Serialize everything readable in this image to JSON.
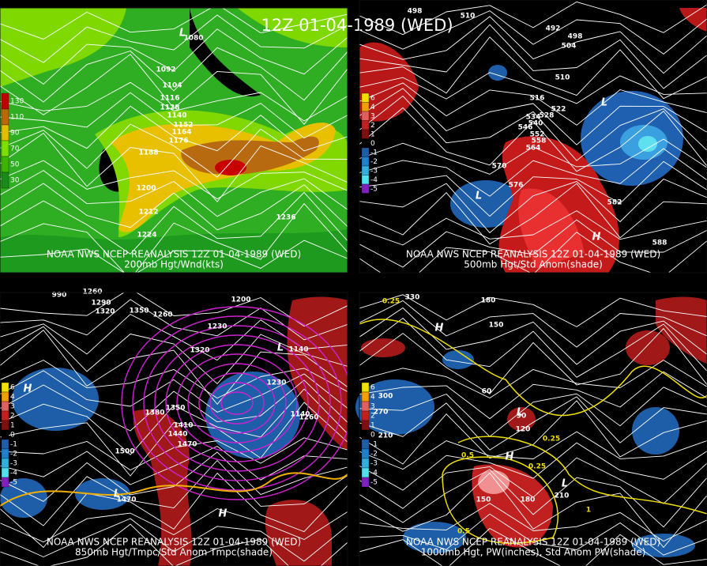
{
  "title": "12Z 01-04-1989 (WED)",
  "panels": [
    {
      "source": "NOAA NWS NCEP REANALYSIS 12Z 01-04-1989 (WED)",
      "caption": "200mb Hgt/Wnd(kts)",
      "legend": [
        "130",
        "110",
        "90",
        "70",
        "50",
        "30"
      ],
      "labels": [
        "L",
        "1080",
        "1092",
        "1104",
        "1116",
        "1128",
        "1140",
        "1152",
        "1164",
        "1176",
        "1188",
        "1200",
        "1212",
        "1224",
        "1236"
      ]
    },
    {
      "source": "NOAA NWS NCEP REANALYSIS 12Z 01-04-1989 (WED)",
      "caption": "500mb Hgt/Std Anom(shade)",
      "legend": [
        "6",
        "4",
        "3",
        "2",
        "1",
        "0",
        "-1",
        "-2",
        "-3",
        "-4",
        "-5"
      ],
      "labels": [
        "498",
        "510",
        "492",
        "498",
        "504",
        "510",
        "516",
        "522",
        "528",
        "534",
        "540",
        "546",
        "552",
        "558",
        "564",
        "570",
        "576",
        "582",
        "588",
        "L",
        "L",
        "H"
      ]
    },
    {
      "source": "NOAA NWS NCEP REANALYSIS 12Z 01-04-1989 (WED)",
      "caption": "850mb Hgt/Tmpc/Std Anom Tmpc(shade)",
      "legend": [
        "6",
        "4",
        "3",
        "2",
        "1",
        "0",
        "-1",
        "-2",
        "-3",
        "-4",
        "-5"
      ],
      "labels": [
        "990",
        "1260",
        "1290",
        "1320",
        "1350",
        "1260",
        "1230",
        "1200",
        "1320",
        "1140",
        "1230",
        "1380",
        "1350",
        "1410",
        "1440",
        "1470",
        "1500",
        "1470",
        "1140",
        "1260",
        "H",
        "L",
        "L",
        "H"
      ]
    },
    {
      "source": "NOAA NWS NCEP REANALYSIS 12Z 01-04-1989 (WED)",
      "caption": "1000mb Hgt, PW(inches), Std Anom PW(shade)",
      "legend": [
        "6",
        "4",
        "3",
        "2",
        "1",
        "0",
        "-1",
        "-2",
        "-3",
        "-4",
        "-5"
      ],
      "labels": [
        "330",
        "180",
        "150",
        "60",
        "90",
        "120",
        "210",
        "300",
        "270",
        "210",
        "180",
        "150",
        "0.25",
        "0.25",
        "0.25",
        "0.5",
        "0.5",
        "1",
        "H",
        "L",
        "H",
        "L"
      ]
    }
  ]
}
